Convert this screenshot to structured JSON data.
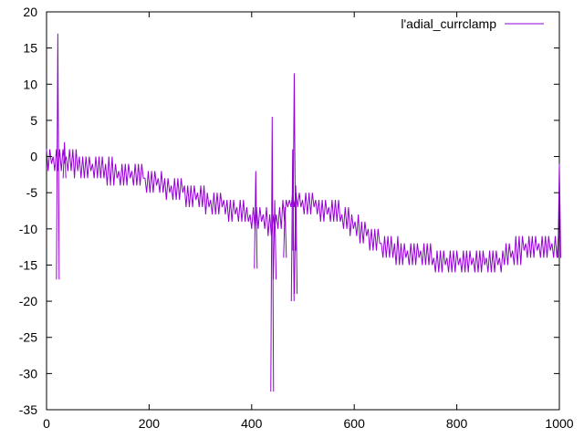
{
  "chart_data": {
    "type": "line",
    "title": "",
    "xlabel": "",
    "ylabel": "",
    "xlim": [
      0,
      1000
    ],
    "ylim": [
      -35,
      20
    ],
    "xticks": [
      0,
      200,
      400,
      600,
      800,
      1000
    ],
    "yticks": [
      -35,
      -30,
      -25,
      -20,
      -15,
      -10,
      -5,
      0,
      5,
      10,
      15,
      20
    ],
    "grid": false,
    "legend": "top-right",
    "series": [
      {
        "name": "l'adial_currclamp",
        "color": "#9400d3",
        "band": {
          "x": [
            0,
            20,
            40,
            60,
            80,
            100,
            120,
            140,
            160,
            180,
            200,
            220,
            240,
            260,
            280,
            300,
            320,
            340,
            360,
            380,
            400,
            420,
            440,
            460,
            480,
            500,
            520,
            540,
            560,
            580,
            600,
            620,
            640,
            660,
            680,
            700,
            720,
            740,
            760,
            780,
            800,
            820,
            840,
            860,
            880,
            900,
            920,
            940,
            960,
            980,
            1000
          ],
          "low": [
            -2,
            -2,
            -2,
            -3,
            -3,
            -3,
            -4,
            -4,
            -4,
            -4,
            -5,
            -5,
            -6,
            -6,
            -7,
            -7,
            -8,
            -8,
            -9,
            -9,
            -10,
            -10,
            -11,
            -10,
            -7,
            -8,
            -8,
            -9,
            -9,
            -10,
            -11,
            -12,
            -13,
            -14,
            -15,
            -15,
            -15,
            -15,
            -16,
            -16,
            -16,
            -16,
            -16,
            -16,
            -16,
            -15,
            -15,
            -14,
            -14,
            -14,
            -14
          ],
          "high": [
            1,
            1,
            1,
            1,
            0,
            0,
            0,
            -1,
            -1,
            -1,
            -2,
            -2,
            -3,
            -3,
            -4,
            -4,
            -5,
            -5,
            -6,
            -6,
            -7,
            -7,
            -8,
            -6,
            -5,
            -5,
            -5,
            -6,
            -6,
            -7,
            -8,
            -9,
            -10,
            -11,
            -11,
            -12,
            -12,
            -12,
            -13,
            -13,
            -13,
            -13,
            -13,
            -13,
            -13,
            -12,
            -11,
            -11,
            -11,
            -11,
            -11
          ]
        },
        "spikes": [
          {
            "x": 22,
            "low": -17,
            "high": 17
          },
          {
            "x": 35,
            "low": -3,
            "high": 2
          },
          {
            "x": 408,
            "low": -15.5,
            "high": -2
          },
          {
            "x": 440,
            "low": -32.5,
            "high": 5.5
          },
          {
            "x": 445,
            "low": -17,
            "high": -6
          },
          {
            "x": 465,
            "low": -14,
            "high": -7
          },
          {
            "x": 480,
            "low": -20,
            "high": 1
          },
          {
            "x": 483,
            "low": -13,
            "high": 11.5
          },
          {
            "x": 486,
            "low": -19,
            "high": -4
          },
          {
            "x": 1000,
            "low": -14,
            "high": -1
          }
        ]
      }
    ]
  }
}
